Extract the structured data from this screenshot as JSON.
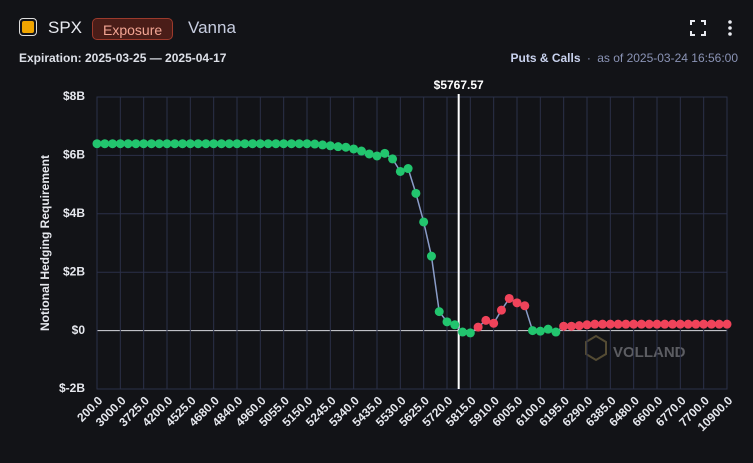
{
  "header": {
    "symbol": "SPX",
    "badge": "Exposure",
    "tab": "Vanna",
    "expiration": "Expiration: 2025-03-25 — 2025-04-17",
    "filter": "Puts & Calls",
    "separator": "·",
    "as_of": "as of 2025-03-24 16:56:00"
  },
  "chart_data": {
    "type": "line",
    "y_label": "Notional Hedging Requirement",
    "watermark": "VOLLAND",
    "spot": {
      "value": 5767.57,
      "label": "$5767.57"
    },
    "categories": [
      "200.0",
      null,
      null,
      "3000.0",
      null,
      null,
      "3725.0",
      null,
      null,
      "4200.0",
      null,
      null,
      "4525.0",
      null,
      null,
      "4680.0",
      null,
      null,
      "4840.0",
      null,
      null,
      "4960.0",
      null,
      null,
      "5055.0",
      null,
      null,
      "5150.0",
      null,
      null,
      "5245.0",
      null,
      null,
      "5340.0",
      null,
      null,
      "5435.0",
      null,
      null,
      "5530.0",
      null,
      null,
      "5625.0",
      null,
      null,
      "5720.0",
      null,
      null,
      "5815.0",
      null,
      null,
      "5910.0",
      null,
      null,
      "6005.0",
      null,
      null,
      "6100.0",
      null,
      null,
      "6195.0",
      null,
      null,
      "6290.0",
      null,
      null,
      "6385.0",
      null,
      null,
      "6480.0",
      null,
      null,
      "6600.0",
      null,
      null,
      "6770.0",
      null,
      null,
      "7700.0",
      null,
      null,
      "10900.0"
    ],
    "values": [
      6.4,
      6.4,
      6.4,
      6.4,
      6.4,
      6.4,
      6.4,
      6.4,
      6.4,
      6.4,
      6.4,
      6.4,
      6.4,
      6.4,
      6.4,
      6.4,
      6.4,
      6.4,
      6.4,
      6.4,
      6.4,
      6.4,
      6.4,
      6.4,
      6.4,
      6.4,
      6.4,
      6.4,
      6.39,
      6.36,
      6.33,
      6.3,
      6.28,
      6.22,
      6.15,
      6.05,
      5.98,
      6.07,
      5.88,
      5.45,
      5.55,
      4.7,
      3.72,
      2.55,
      0.65,
      0.3,
      0.2,
      -0.05,
      -0.08,
      0.12,
      0.35,
      0.25,
      0.7,
      1.1,
      0.95,
      0.85,
      0.0,
      -0.02,
      0.05,
      -0.05,
      0.15,
      0.15,
      0.17,
      0.2,
      0.22,
      0.22,
      0.22,
      0.22,
      0.22,
      0.22,
      0.22,
      0.22,
      0.22,
      0.22,
      0.22,
      0.22,
      0.22,
      0.22,
      0.22,
      0.22,
      0.22,
      0.22
    ],
    "point_colors": [
      "#22c56e",
      "#22c56e",
      "#22c56e",
      "#22c56e",
      "#22c56e",
      "#22c56e",
      "#22c56e",
      "#22c56e",
      "#22c56e",
      "#22c56e",
      "#22c56e",
      "#22c56e",
      "#22c56e",
      "#22c56e",
      "#22c56e",
      "#22c56e",
      "#22c56e",
      "#22c56e",
      "#22c56e",
      "#22c56e",
      "#22c56e",
      "#22c56e",
      "#22c56e",
      "#22c56e",
      "#22c56e",
      "#22c56e",
      "#22c56e",
      "#22c56e",
      "#22c56e",
      "#22c56e",
      "#22c56e",
      "#22c56e",
      "#22c56e",
      "#22c56e",
      "#22c56e",
      "#22c56e",
      "#22c56e",
      "#22c56e",
      "#22c56e",
      "#22c56e",
      "#22c56e",
      "#22c56e",
      "#22c56e",
      "#22c56e",
      "#22c56e",
      "#22c56e",
      "#22c56e",
      "#22c56e",
      "#22c56e",
      "#f0435a",
      "#f0435a",
      "#f0435a",
      "#f0435a",
      "#f0435a",
      "#f0435a",
      "#f0435a",
      "#22c56e",
      "#22c56e",
      "#22c56e",
      "#22c56e",
      "#f0435a",
      "#f0435a",
      "#f0435a",
      "#f0435a",
      "#f0435a",
      "#f0435a",
      "#f0435a",
      "#f0435a",
      "#f0435a",
      "#f0435a",
      "#f0435a",
      "#f0435a",
      "#f0435a",
      "#f0435a",
      "#f0435a",
      "#f0435a",
      "#f0435a",
      "#f0435a",
      "#f0435a",
      "#f0435a",
      "#f0435a",
      "#f0435a"
    ],
    "line_color": "#8a9cc8",
    "ylim": [
      -2,
      8
    ],
    "yticks": [
      {
        "value": -2,
        "label": "$-2B"
      },
      {
        "value": 0,
        "label": "$0"
      },
      {
        "value": 2,
        "label": "$2B"
      },
      {
        "value": 4,
        "label": "$4B"
      },
      {
        "value": 6,
        "label": "$6B"
      },
      {
        "value": 8,
        "label": "$8B"
      }
    ],
    "grid": true
  }
}
